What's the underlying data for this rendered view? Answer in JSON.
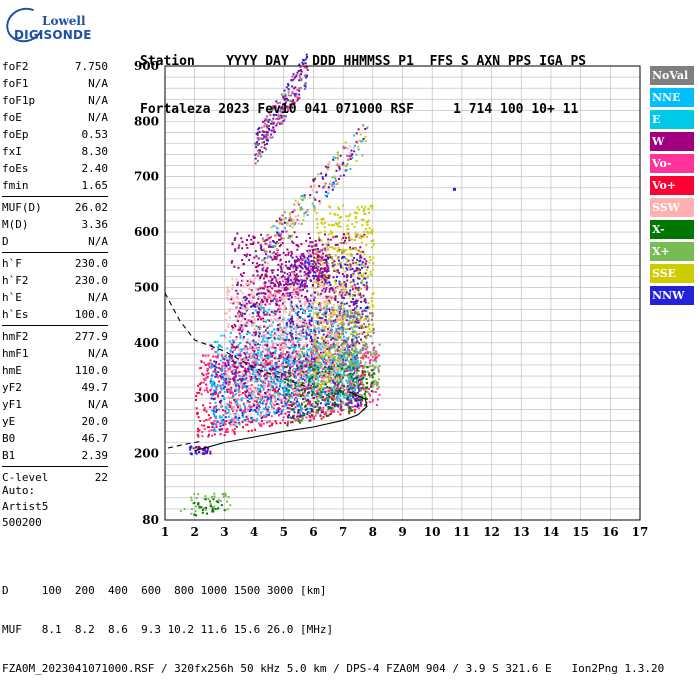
{
  "logo": {
    "brand": "Lowell",
    "product": "DIGISONDE"
  },
  "header": {
    "line1": "Station    YYYY DAY   DDD HHMMSS P1  FFS S AXN PPS IGA PS",
    "line2": "Fortaleza 2023 Fev10 041 071000 RSF     1 714 100 10+ 11"
  },
  "params": [
    [
      {
        "name": "foF2",
        "value": "7.750"
      },
      {
        "name": "foF1",
        "value": "N/A"
      },
      {
        "name": "foF1p",
        "value": "N/A"
      },
      {
        "name": "foE",
        "value": "N/A"
      },
      {
        "name": "foEp",
        "value": "0.53"
      },
      {
        "name": "fxI",
        "value": "8.30"
      },
      {
        "name": "foEs",
        "value": "2.40"
      },
      {
        "name": "fmin",
        "value": "1.65"
      }
    ],
    [
      {
        "name": "MUF(D)",
        "value": "26.02"
      },
      {
        "name": "M(D)",
        "value": "3.36"
      },
      {
        "name": "D",
        "value": "N/A"
      }
    ],
    [
      {
        "name": "h`F",
        "value": "230.0"
      },
      {
        "name": "h`F2",
        "value": "230.0"
      },
      {
        "name": "h`E",
        "value": "N/A"
      },
      {
        "name": "h`Es",
        "value": "100.0"
      }
    ],
    [
      {
        "name": "hmF2",
        "value": "277.9"
      },
      {
        "name": "hmF1",
        "value": "N/A"
      },
      {
        "name": "hmE",
        "value": "110.0"
      },
      {
        "name": "yF2",
        "value": "49.7"
      },
      {
        "name": "yF1",
        "value": "N/A"
      },
      {
        "name": "yE",
        "value": "20.0"
      },
      {
        "name": "B0",
        "value": "46.7"
      },
      {
        "name": "B1",
        "value": "2.39"
      }
    ],
    [
      {
        "name": "C-level",
        "value": "22"
      }
    ]
  ],
  "extra": {
    "auto": "Auto:",
    "artist": "Artist5",
    "code": "500200"
  },
  "footer": {
    "d_row": "D     100  200  400  600  800 1000 1500 3000 [km]",
    "muf_row": "MUF   8.1  8.2  8.6  9.3 10.2 11.6 15.6 26.0 [MHz]",
    "file_row": "FZA0M_2023041071000.RSF / 320fx256h 50 kHz 5.0 km / DPS-4 FZA0M 904 / 3.9 S 321.6 E   Ion2Png 1.3.20"
  },
  "legend": [
    {
      "label": "NoVal",
      "bg": "#7f7f7f",
      "fg": "#ffffff"
    },
    {
      "label": "NNE",
      "bg": "#00bfff",
      "fg": "#ffffff"
    },
    {
      "label": "E",
      "bg": "#00c8e8",
      "fg": "#ffffff"
    },
    {
      "label": "W",
      "bg": "#a0007f",
      "fg": "#ffffff"
    },
    {
      "label": "Vo-",
      "bg": "#ff3399",
      "fg": "#ffffff"
    },
    {
      "label": "Vo+",
      "bg": "#ff0033",
      "fg": "#ffffff"
    },
    {
      "label": "SSW",
      "bg": "#ffb0b0",
      "fg": "#ffffff"
    },
    {
      "label": "X-",
      "bg": "#007700",
      "fg": "#ffffff"
    },
    {
      "label": "X+",
      "bg": "#77bb55",
      "fg": "#ffffff"
    },
    {
      "label": "SSE",
      "bg": "#cccc00",
      "fg": "#ffffff"
    },
    {
      "label": "NNW",
      "bg": "#2222dd",
      "fg": "#ffffff"
    }
  ],
  "chart_data": {
    "type": "scatter",
    "title": "",
    "xlabel": "",
    "ylabel": "",
    "xlim": [
      1,
      17
    ],
    "ylim": [
      80,
      900
    ],
    "x_ticks": [
      1,
      2,
      3,
      4,
      5,
      6,
      7,
      8,
      9,
      10,
      11,
      12,
      13,
      14,
      15,
      16,
      17
    ],
    "y_ticks": [
      80,
      200,
      300,
      400,
      500,
      600,
      700,
      800,
      900
    ],
    "grid": true,
    "series": [
      {
        "name": "Vo+",
        "color": "#ff0033",
        "regions": [
          {
            "x": [
              2.0,
              7.8
            ],
            "y": [
              225,
              380
            ]
          }
        ]
      },
      {
        "name": "Vo-",
        "color": "#ff3399",
        "regions": [
          {
            "x": [
              2.2,
              8.2
            ],
            "y": [
              230,
              400
            ]
          }
        ]
      },
      {
        "name": "NNW",
        "color": "#2222dd",
        "regions": [
          {
            "x": [
              2.5,
              7.6
            ],
            "y": [
              240,
              380
            ]
          },
          {
            "x": [
              5.0,
              7.8
            ],
            "y": [
              380,
              560
            ]
          }
        ]
      },
      {
        "name": "NNE",
        "color": "#00bfff",
        "regions": [
          {
            "x": [
              2.5,
              7.5
            ],
            "y": [
              240,
              420
            ]
          }
        ]
      },
      {
        "name": "E",
        "color": "#00c8e8",
        "regions": [
          {
            "x": [
              4.0,
              7.5
            ],
            "y": [
              290,
              470
            ]
          }
        ]
      },
      {
        "name": "W",
        "color": "#a0007f",
        "regions": [
          {
            "x": [
              3.2,
              7.8
            ],
            "y": [
              300,
              600
            ]
          },
          {
            "x": [
              4.0,
              6.5
            ],
            "y": [
              470,
              580
            ]
          }
        ]
      },
      {
        "name": "X+",
        "color": "#77bb55",
        "regions": [
          {
            "x": [
              5.5,
              8.2
            ],
            "y": [
              260,
              400
            ]
          },
          {
            "x": [
              1.5,
              3.2
            ],
            "y": [
              85,
              130
            ]
          }
        ]
      },
      {
        "name": "X-",
        "color": "#007700",
        "regions": [
          {
            "x": [
              5.0,
              8.0
            ],
            "y": [
              250,
              360
            ]
          },
          {
            "x": [
              1.8,
              3.0
            ],
            "y": [
              85,
              120
            ]
          }
        ]
      },
      {
        "name": "SSE",
        "color": "#cccc00",
        "regions": [
          {
            "x": [
              6.0,
              8.0
            ],
            "y": [
              300,
              650
            ]
          }
        ]
      },
      {
        "name": "SSW",
        "color": "#ffb0b0",
        "regions": [
          {
            "x": [
              3.0,
              7.0
            ],
            "y": [
              240,
              520
            ]
          }
        ]
      },
      {
        "name": "NoVal",
        "color": "#7f7f7f",
        "regions": [
          {
            "x": [
              6.5,
              8.0
            ],
            "y": [
              350,
              460
            ]
          }
        ]
      }
    ],
    "upper_traces": [
      {
        "x": [
          4.0,
          5.8
        ],
        "y": [
          750,
          900
        ],
        "colors": [
          "#a0007f",
          "#ff3399",
          "#7f7f7f",
          "#2222dd"
        ]
      },
      {
        "x": [
          4.2,
          7.8
        ],
        "y": [
          560,
          780
        ],
        "colors": [
          "#a0007f",
          "#2222dd",
          "#00bfff",
          "#cccc00",
          "#ffb0b0",
          "#ff3399",
          "#77bb55"
        ]
      },
      {
        "x": [
          3.5,
          6.5
        ],
        "y": [
          450,
          560
        ],
        "colors": [
          "#a0007f",
          "#ff3399",
          "#ffb0b0",
          "#2222dd"
        ]
      }
    ],
    "es_points": {
      "x": [
        1.8,
        2.5
      ],
      "y": [
        200,
        215
      ]
    },
    "isolated_point": {
      "x": 10.7,
      "y": 680
    },
    "profile_curve": {
      "x": [
        2.0,
        3.0,
        4.0,
        5.0,
        6.0,
        7.0,
        7.5,
        7.8,
        7.75,
        7.2
      ],
      "y": [
        205,
        220,
        230,
        240,
        248,
        260,
        270,
        285,
        298,
        312
      ]
    },
    "muf_dashed_curve": {
      "x": [
        1.0,
        1.5,
        2.0,
        3.0,
        4.0,
        5.0,
        5.8
      ],
      "y": [
        490,
        440,
        405,
        385,
        355,
        335,
        320
      ]
    },
    "lower_dashed_curve": {
      "x": [
        1.1,
        1.6,
        2.2
      ],
      "y": [
        210,
        216,
        222
      ]
    }
  }
}
